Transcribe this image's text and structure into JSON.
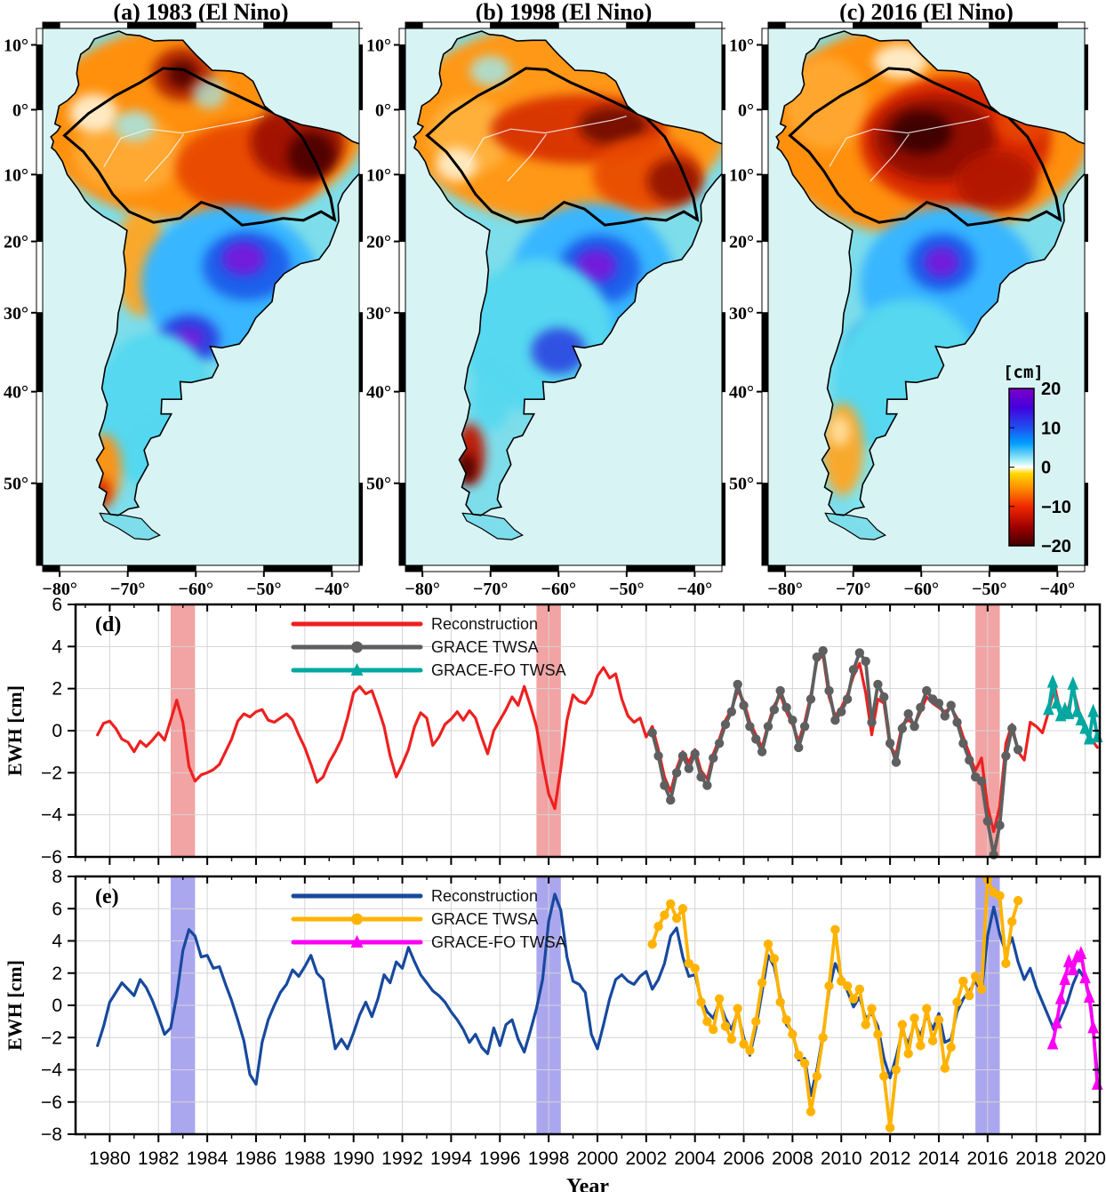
{
  "maps_common": {
    "lon_ticks": {
      "values": [
        -80,
        -70,
        -60,
        -50,
        -40
      ],
      "labels": [
        "−80°",
        "−70°",
        "−60°",
        "−50°",
        "−40°"
      ]
    },
    "lat_ticks": {
      "values": [
        10,
        0,
        -10,
        -20,
        -30,
        -40,
        -50
      ],
      "labels": [
        "10°",
        "0°",
        "−10°",
        "−20°",
        "−30°",
        "−40°",
        "−50°"
      ]
    },
    "ocean_color": "#d8f3f3"
  },
  "maps": [
    {
      "id": "a",
      "title": "(a) 1983 (El Nino)",
      "regions": [
        [
          -59,
          -2,
          24,
          13,
          "#FF9010",
          1
        ],
        [
          -70,
          -7,
          8,
          5,
          "#FFA830",
          1
        ],
        [
          -52,
          -9,
          11,
          6,
          "#E84800",
          0.95
        ],
        [
          -45,
          -5,
          7,
          5,
          "#9B1000",
          0.9
        ],
        [
          -43,
          -7,
          3.5,
          3,
          "#4A0400",
          0.9
        ],
        [
          -62,
          5.5,
          4.5,
          3.5,
          "#B02000",
          0.9
        ],
        [
          -62,
          5.5,
          2.2,
          1.8,
          "#500000",
          0.9
        ],
        [
          -75,
          -0.5,
          3.5,
          2.5,
          "#FFF3D8",
          0.9
        ],
        [
          -69,
          -2.5,
          3,
          2,
          "#9FEAF2",
          0.8
        ],
        [
          -58,
          2.5,
          2.5,
          2,
          "#9FEAF2",
          0.7
        ],
        [
          -68,
          -23,
          4,
          7,
          "#FFA620",
          0.95
        ],
        [
          -55,
          -26,
          13,
          10,
          "#38B6FF",
          1
        ],
        [
          -52.5,
          -23.5,
          6.5,
          4.5,
          "#1B5BEA",
          0.95
        ],
        [
          -53,
          -22.5,
          3.2,
          2.2,
          "#7A18D8",
          0.9
        ],
        [
          -61,
          -33.5,
          4.5,
          3.2,
          "#2C3BE0",
          0.9
        ],
        [
          -61,
          -33.5,
          2.2,
          1.6,
          "#7A18D8",
          0.85
        ],
        [
          -66,
          -42,
          9,
          10,
          "#55D8F0",
          1
        ],
        [
          -64,
          -48,
          5,
          6,
          "#55D8F0",
          0.9
        ],
        [
          -73.5,
          -48.5,
          2.6,
          4.5,
          "#FF9010",
          0.95
        ],
        [
          -74,
          -51,
          1.6,
          2,
          "#D02800",
          0.9
        ]
      ]
    },
    {
      "id": "b",
      "title": "(b) 1998 (El Nino)",
      "regions": [
        [
          -59,
          -2,
          24,
          13,
          "#FF9815",
          1
        ],
        [
          -73,
          -4,
          6,
          5,
          "#FFB340",
          0.9
        ],
        [
          -57,
          -3,
          13,
          4.5,
          "#D83000",
          0.95
        ],
        [
          -52,
          -2.5,
          5,
          2.5,
          "#6E0C00",
          0.9
        ],
        [
          -47,
          -10,
          8,
          5,
          "#E84800",
          0.9
        ],
        [
          -43,
          -11,
          4,
          3,
          "#8B0800",
          0.85
        ],
        [
          -75,
          -8.5,
          3,
          2.2,
          "#FFF3D8",
          0.85
        ],
        [
          -70,
          6,
          3,
          2,
          "#9FEAF2",
          0.8
        ],
        [
          -55,
          -25.5,
          12,
          10,
          "#38B6FF",
          1
        ],
        [
          -54,
          -24,
          6,
          4.5,
          "#1B5BEA",
          0.95
        ],
        [
          -54.5,
          -23.5,
          3,
          2.2,
          "#7A18D8",
          0.9
        ],
        [
          -63,
          -33,
          11,
          10,
          "#55D8F0",
          1
        ],
        [
          -60,
          -35,
          4,
          3,
          "#2C3BE0",
          0.85
        ],
        [
          -70,
          -41,
          3,
          4,
          "#55D8F0",
          0.9
        ],
        [
          -73,
          -47,
          2.2,
          4,
          "#C01800",
          0.95
        ],
        [
          -73.5,
          -48.5,
          1.4,
          2,
          "#4A0400",
          0.9
        ]
      ]
    },
    {
      "id": "c",
      "title": "(c) 2016 (El Nino)",
      "regions": [
        [
          -59,
          -3,
          24,
          14,
          "#FF9010",
          1
        ],
        [
          -74,
          1,
          6,
          6,
          "#FFA830",
          0.95
        ],
        [
          -55,
          -5,
          14,
          8.5,
          "#D82800",
          0.95
        ],
        [
          -58,
          -4.5,
          9,
          5.5,
          "#8F0E00",
          0.95
        ],
        [
          -60,
          -3.5,
          4.5,
          2.8,
          "#380000",
          0.9
        ],
        [
          -49,
          -11,
          6,
          4,
          "#B01400",
          0.9
        ],
        [
          -63,
          7.5,
          4,
          2.2,
          "#FFF3D8",
          0.9
        ],
        [
          -45,
          -2,
          4,
          2.5,
          "#E84800",
          0.85
        ],
        [
          -56,
          -26,
          13,
          10,
          "#38B6FF",
          1
        ],
        [
          -57,
          -23,
          5,
          3.8,
          "#1B5BEA",
          0.95
        ],
        [
          -57,
          -23,
          2.6,
          2,
          "#7A18D8",
          0.9
        ],
        [
          -66,
          -34.5,
          4.5,
          3.5,
          "#2C3BE0",
          0.9
        ],
        [
          -66.5,
          -34.5,
          2.2,
          1.8,
          "#7A18D8",
          0.85
        ],
        [
          -62,
          -39,
          11,
          11,
          "#55D8F0",
          1
        ],
        [
          -67,
          -50,
          4,
          5,
          "#7FE6F0",
          0.9
        ],
        [
          -71.5,
          -46.5,
          3,
          6,
          "#FFA620",
          0.95
        ],
        [
          -72,
          -44.5,
          1.6,
          2,
          "#FFE0A0",
          0.9
        ]
      ],
      "has_colorbar": true
    }
  ],
  "colorbar": {
    "label": "[cm]",
    "tick_values": [
      20,
      10,
      0,
      -10,
      -20
    ],
    "tick_labels": [
      "20",
      "10",
      "0",
      "−10",
      "−20"
    ],
    "stops": [
      [
        "0%",
        "#7D00C8"
      ],
      [
        "12%",
        "#4400DD"
      ],
      [
        "25%",
        "#1E50F0"
      ],
      [
        "35%",
        "#00A0FF"
      ],
      [
        "46%",
        "#A8F0F5"
      ],
      [
        "50%",
        "#FFFFFF"
      ],
      [
        "54%",
        "#FFD800"
      ],
      [
        "63%",
        "#FF9000"
      ],
      [
        "75%",
        "#F02800"
      ],
      [
        "88%",
        "#A00000"
      ],
      [
        "100%",
        "#400000"
      ]
    ]
  },
  "chart_data": [
    {
      "id": "d",
      "type": "line",
      "panel_label": "(d)",
      "ylabel": "EWH [cm]",
      "xlabel": "",
      "ylim": [
        -6,
        6
      ],
      "yticks": [
        6,
        4,
        2,
        0,
        -2,
        -4,
        -6
      ],
      "xlim": [
        1978.6,
        2020.6
      ],
      "xticks": [
        1980,
        1982,
        1984,
        1986,
        1988,
        1990,
        1992,
        1994,
        1996,
        1998,
        2000,
        2002,
        2004,
        2006,
        2008,
        2010,
        2012,
        2014,
        2016,
        2018,
        2020
      ],
      "el_nino_bands": [
        1983,
        1998,
        2016
      ],
      "band_color": "#F2A3A3",
      "grid": true,
      "legend_position": "top-left",
      "series": [
        {
          "name": "Reconstruction",
          "color": "#EE2020",
          "marker": "none",
          "x0": 1979.5,
          "dx": 0.25,
          "y": [
            -0.2,
            0.35,
            0.45,
            0.1,
            -0.4,
            -0.55,
            -1.0,
            -0.5,
            -0.75,
            -0.45,
            -0.1,
            -0.45,
            0.5,
            1.45,
            0.4,
            -1.7,
            -2.4,
            -2.1,
            -2.0,
            -1.85,
            -1.6,
            -1.0,
            -0.4,
            0.45,
            0.8,
            0.65,
            0.9,
            1.0,
            0.5,
            0.4,
            0.6,
            0.8,
            0.5,
            -0.2,
            -0.8,
            -1.6,
            -2.45,
            -2.2,
            -1.5,
            -1.0,
            -0.4,
            0.6,
            1.8,
            2.1,
            1.75,
            1.9,
            1.1,
            0.2,
            -1.2,
            -2.2,
            -1.6,
            -0.9,
            0.2,
            0.85,
            0.6,
            -0.7,
            -0.3,
            0.3,
            0.55,
            0.9,
            0.5,
            0.95,
            0.6,
            -0.3,
            -1.1,
            0.0,
            0.5,
            1.0,
            1.6,
            1.2,
            2.1,
            1.2,
            0.2,
            -1.5,
            -3.0,
            -3.7,
            -1.8,
            0.5,
            1.7,
            1.4,
            1.3,
            1.7,
            2.6,
            3.0,
            2.5,
            2.7,
            1.5,
            0.7,
            0.4,
            0.6,
            -0.3,
            0.2,
            -0.9,
            -2.2,
            -2.9,
            -1.8,
            -1.0,
            -1.5,
            -0.9,
            -1.9,
            -2.3,
            -1.1,
            -0.4,
            0.5,
            1.0,
            1.9,
            1.4,
            0.4,
            -0.2,
            -0.8,
            0.3,
            1.2,
            1.7,
            0.9,
            0.3,
            -0.5,
            0.4,
            1.7,
            3.3,
            3.6,
            1.6,
            0.7,
            1.1,
            1.7,
            2.6,
            3.2,
            1.8,
            -0.2,
            1.5,
            1.3,
            -0.8,
            -1.1,
            0.3,
            0.5,
            0.3,
            0.9,
            1.6,
            1.3,
            1.1,
            0.9,
            1.1,
            0.6,
            -0.3,
            -1.1,
            -1.9,
            -1.3,
            -3.6,
            -4.8,
            -3.6,
            -0.6,
            0.3,
            -1.0,
            -1.4,
            0.4,
            0.2,
            -0.1,
            0.9,
            2.1,
            0.8,
            0.7,
            2.0,
            0.9,
            0.3,
            -0.4,
            -0.8
          ]
        },
        {
          "name": "GRACE TWSA",
          "color": "#5F5F5F",
          "marker": "circle",
          "x0": 2002.25,
          "dx": 0.25,
          "y": [
            -0.1,
            -1.2,
            -2.6,
            -3.3,
            -2.0,
            -1.2,
            -1.8,
            -1.1,
            -2.2,
            -2.6,
            -1.3,
            -0.6,
            0.3,
            0.9,
            2.2,
            1.2,
            0.2,
            -0.4,
            -1.0,
            0.2,
            1.0,
            1.9,
            1.1,
            0.5,
            -0.8,
            0.2,
            1.5,
            3.5,
            3.8,
            1.9,
            0.5,
            0.9,
            1.5,
            2.9,
            3.7,
            3.3,
            0.4,
            2.2,
            1.6,
            -0.6,
            -1.5,
            0.1,
            0.8,
            0.2,
            1.1,
            1.9,
            1.5,
            1.3,
            0.7,
            1.2,
            0.4,
            -0.6,
            -1.4,
            -2.2,
            -2.4,
            -4.3,
            -5.9,
            -4.5,
            -1.2,
            0.1,
            -0.9
          ]
        },
        {
          "name": "GRACE-FO TWSA",
          "color": "#00A8A2",
          "marker": "triangle",
          "x": [
            2018.5,
            2018.67,
            2018.83,
            2019.0,
            2019.17,
            2019.33,
            2019.5,
            2019.67,
            2019.83,
            2020.0,
            2020.17,
            2020.33,
            2020.5
          ],
          "y": [
            1.0,
            2.3,
            1.3,
            0.7,
            1.0,
            0.8,
            2.2,
            0.9,
            0.5,
            0.1,
            -0.4,
            0.9,
            -0.3
          ]
        }
      ]
    },
    {
      "id": "e",
      "type": "line",
      "panel_label": "(e)",
      "ylabel": "EWH [cm]",
      "xlabel": "Year",
      "ylim": [
        -8,
        8
      ],
      "yticks": [
        8,
        6,
        4,
        2,
        0,
        -2,
        -4,
        -6,
        -8
      ],
      "xlim": [
        1978.6,
        2020.6
      ],
      "xticks": [
        1980,
        1982,
        1984,
        1986,
        1988,
        1990,
        1992,
        1994,
        1996,
        1998,
        2000,
        2002,
        2004,
        2006,
        2008,
        2010,
        2012,
        2014,
        2016,
        2018,
        2020
      ],
      "el_nino_bands": [
        1983,
        1998,
        2016
      ],
      "band_color": "#ABA7EE",
      "grid": true,
      "legend_position": "top-left",
      "series": [
        {
          "name": "Reconstruction",
          "color": "#17499E",
          "marker": "none",
          "x0": 1979.5,
          "dx": 0.25,
          "y": [
            -2.5,
            -1.3,
            0.2,
            0.8,
            1.4,
            1.0,
            0.6,
            1.6,
            1.1,
            0.3,
            -0.7,
            -1.8,
            -1.4,
            0.6,
            3.4,
            4.7,
            4.3,
            3.0,
            3.1,
            2.3,
            2.4,
            1.3,
            0.3,
            -0.9,
            -2.2,
            -4.3,
            -4.9,
            -2.3,
            -0.9,
            0.0,
            0.8,
            1.3,
            2.2,
            1.8,
            2.4,
            3.1,
            2.0,
            1.6,
            -0.6,
            -2.7,
            -2.1,
            -2.7,
            -1.7,
            -0.6,
            0.2,
            -0.7,
            0.4,
            1.9,
            1.4,
            2.7,
            2.3,
            3.6,
            2.7,
            1.9,
            1.4,
            0.9,
            0.6,
            0.2,
            -0.4,
            -0.9,
            -1.5,
            -2.3,
            -1.8,
            -2.6,
            -3.0,
            -1.4,
            -2.5,
            -1.2,
            -0.9,
            -2.1,
            -2.9,
            -1.6,
            -0.2,
            1.6,
            5.2,
            6.9,
            5.9,
            3.0,
            1.5,
            1.3,
            0.8,
            -1.8,
            -2.7,
            -1.2,
            0.4,
            1.6,
            1.9,
            1.5,
            1.3,
            1.8,
            2.1,
            1.0,
            1.6,
            2.6,
            4.3,
            4.8,
            3.0,
            1.8,
            1.9,
            0.4,
            -0.4,
            -0.8,
            0.2,
            -0.8,
            -1.5,
            -0.4,
            -2.0,
            -3.1,
            -1.4,
            0.8,
            3.1,
            2.4,
            0.5,
            -1.2,
            -1.6,
            -3.4,
            -3.3,
            -5.6,
            -4.0,
            -1.8,
            0.9,
            2.6,
            1.8,
            0.9,
            -0.1,
            0.5,
            -0.8,
            -0.5,
            -1.3,
            -3.3,
            -4.5,
            -3.2,
            -1.6,
            -2.4,
            -1.1,
            -1.9,
            -0.6,
            -1.5,
            -0.5,
            -2.3,
            -2.1,
            -0.4,
            0.4,
            0.9,
            1.5,
            0.8,
            4.3,
            6.1,
            4.4,
            3.3,
            4.2,
            2.7,
            1.6,
            2.3,
            1.1,
            0.2,
            -0.7,
            -1.6,
            -0.8,
            0.1,
            1.3,
            2.2,
            1.6,
            -0.2,
            -4.2
          ]
        },
        {
          "name": "GRACE TWSA",
          "color": "#FFB300",
          "marker": "circle",
          "x0": 2002.25,
          "dx": 0.25,
          "y": [
            3.8,
            4.9,
            5.6,
            6.3,
            5.4,
            6.0,
            2.6,
            2.3,
            0.2,
            -1.0,
            -1.5,
            0.4,
            -1.3,
            -2.1,
            -0.2,
            -2.4,
            -2.8,
            -1.0,
            1.4,
            3.8,
            2.9,
            0.2,
            -0.9,
            -1.8,
            -3.1,
            -3.6,
            -6.6,
            -4.4,
            -2.0,
            1.2,
            4.7,
            1.5,
            1.2,
            0.4,
            1.0,
            -1.2,
            -0.2,
            -1.8,
            -4.4,
            -7.6,
            -4.0,
            -1.2,
            -3.0,
            -0.8,
            -2.5,
            -0.2,
            -2.2,
            -0.9,
            -3.9,
            -2.6,
            0.2,
            1.5,
            0.6,
            1.8,
            1.0,
            7.8,
            7.0,
            6.8,
            2.6,
            5.2,
            6.5
          ]
        },
        {
          "name": "GRACE-FO TWSA",
          "color": "#FB00F5",
          "marker": "triangle",
          "x": [
            2018.67,
            2018.83,
            2019.0,
            2019.17,
            2019.33,
            2019.5,
            2019.67,
            2019.83,
            2020.0,
            2020.17,
            2020.33,
            2020.5
          ],
          "y": [
            -2.4,
            -1.1,
            0.4,
            1.6,
            2.7,
            2.2,
            3.0,
            3.2,
            1.7,
            0.5,
            -1.4,
            -4.9
          ]
        }
      ]
    }
  ]
}
